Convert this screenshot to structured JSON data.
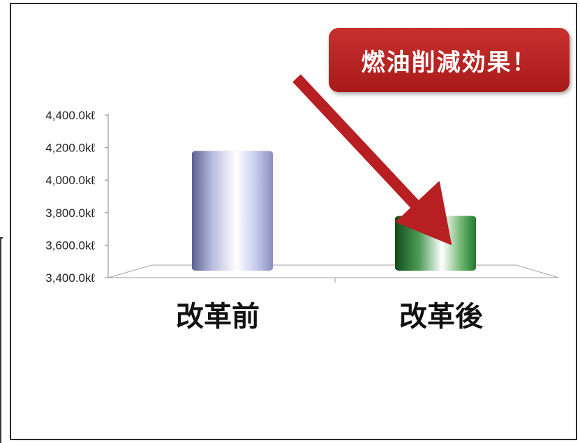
{
  "chart_data": {
    "type": "bar",
    "categories": [
      "改革前",
      "改革後"
    ],
    "values": [
      4180,
      3780
    ],
    "ylim": [
      3400,
      4400
    ],
    "yticks": [
      "4,400.0kℓ",
      "4,200.0kℓ",
      "4,000.0kℓ",
      "3,800.0kℓ",
      "3,600.0kℓ",
      "3,400.0kℓ"
    ],
    "ytick_values": [
      4400,
      4200,
      4000,
      3800,
      3600,
      3400
    ],
    "grid": false,
    "bar_colors": [
      "#8a8fc0",
      "#1f7a2f"
    ],
    "arrow_color": "#b81f22",
    "annotation": "燃油削減効果！"
  }
}
